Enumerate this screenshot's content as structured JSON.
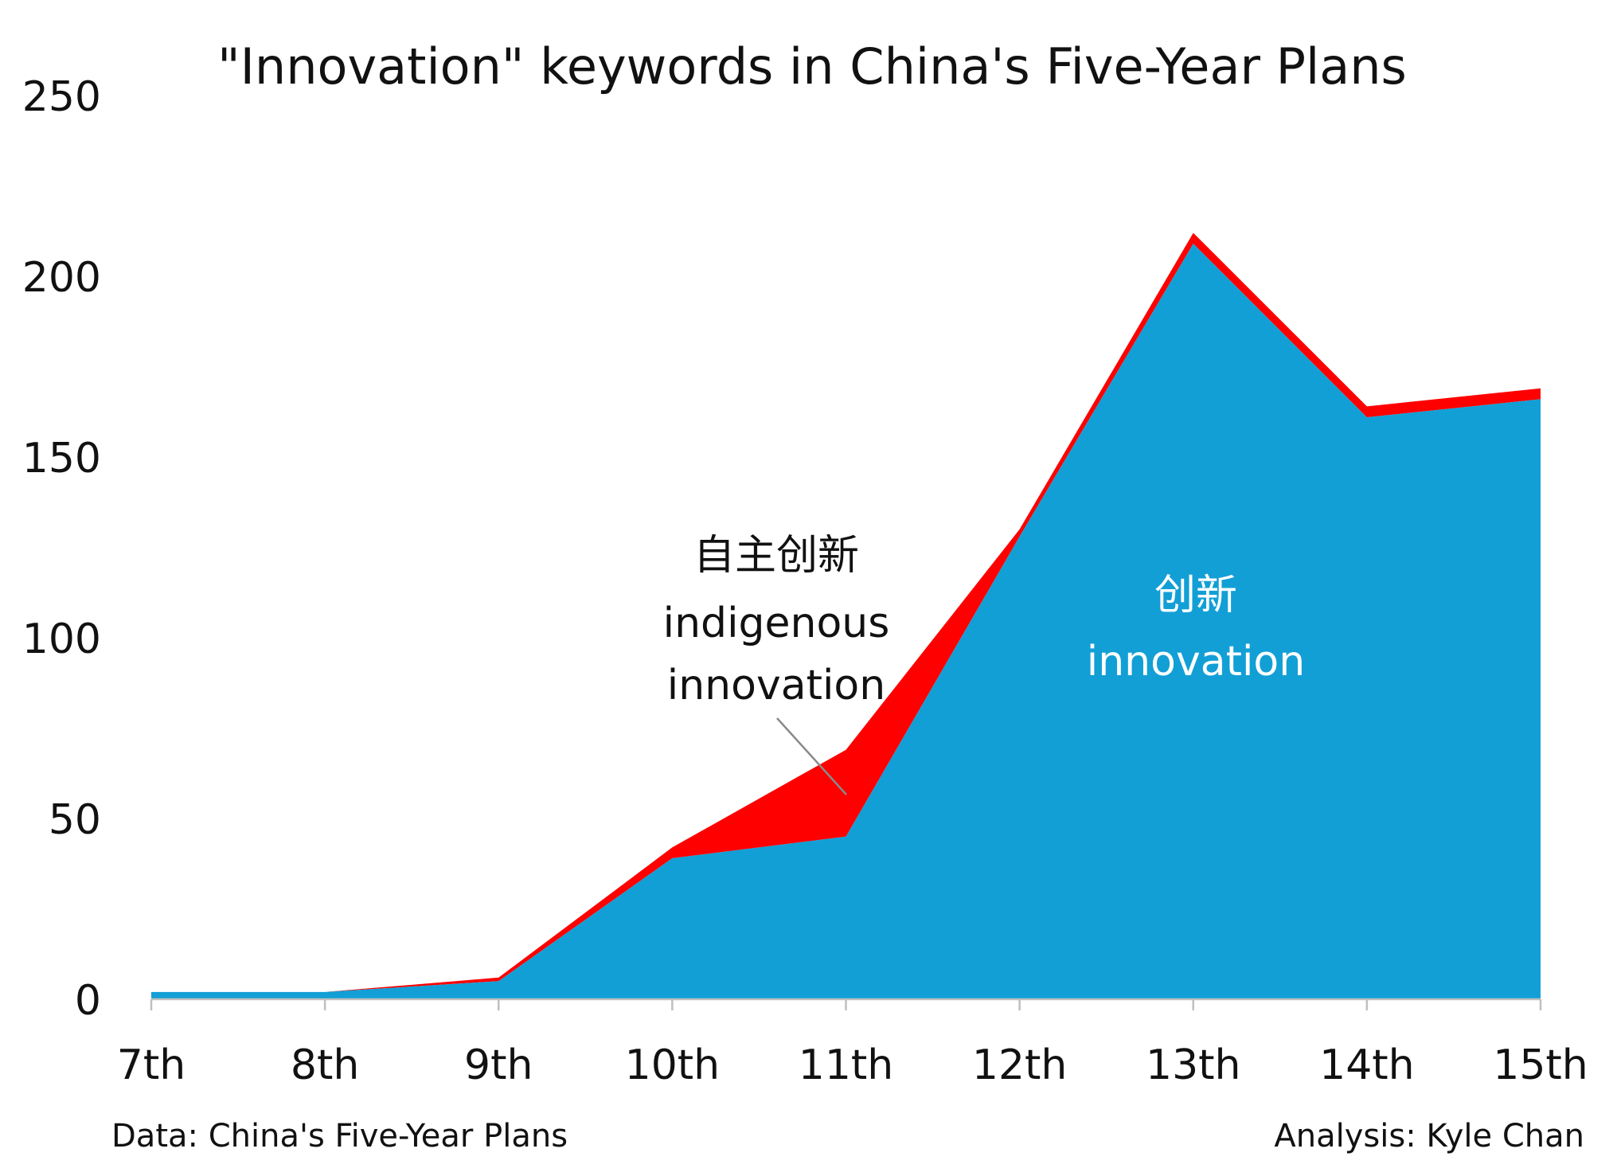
{
  "chart_data": {
    "type": "area",
    "stacked": true,
    "title": "\"Innovation\" keywords in China's Five-Year Plans",
    "categories": [
      "7th",
      "8th",
      "9th",
      "10th",
      "11th",
      "12th",
      "13th",
      "14th",
      "15th"
    ],
    "ylim": [
      0,
      250
    ],
    "yticks": [
      0,
      50,
      100,
      150,
      200,
      250
    ],
    "series": [
      {
        "name": "创新 innovation",
        "color": "#129FD6",
        "values": [
          2,
          2,
          5,
          39,
          45,
          128,
          209,
          161,
          166
        ],
        "label_zh": "创新",
        "label_en": "innovation"
      },
      {
        "name": "自主创新 indigenous innovation",
        "color": "#FF0000",
        "values": [
          0,
          0,
          1,
          3,
          24,
          2,
          3,
          3,
          3
        ],
        "label_zh": "自主创新",
        "label_en_1": "indigenous",
        "label_en_2": "innovation"
      }
    ],
    "source_note": "Data: China's Five-Year Plans",
    "credit": "Analysis: Kyle Chan"
  }
}
